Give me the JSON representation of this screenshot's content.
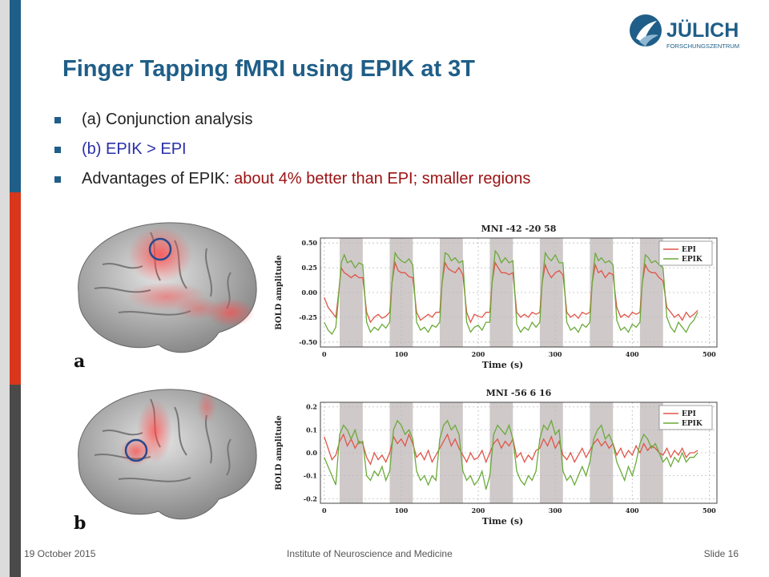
{
  "slide": {
    "title": "Finger Tapping fMRI using EPIK at 3T",
    "logo": {
      "name": "JÜLICH",
      "subtitle": "FORSCHUNGSZENTRUM"
    },
    "bullets": [
      {
        "parts": [
          "(a) Conjunction analysis"
        ]
      },
      {
        "parts": [
          "(b) EPIK > EPI"
        ]
      },
      {
        "parts": [
          "Advantages of EPIK: ",
          "about 4% better than EPI; smaller regions"
        ]
      }
    ],
    "panels": {
      "a": "a",
      "b": "b"
    },
    "footer": {
      "date": "19 October 2015",
      "institute": "Institute of Neuroscience and Medicine",
      "slide_no": "Slide 16"
    },
    "colors": {
      "title": "#1f5e88",
      "red_text": "#9b1111",
      "blue_text": "#2a2fa8",
      "epi": "#e05548",
      "epik": "#6aab3a"
    }
  },
  "chart_data": [
    {
      "type": "line",
      "title": "MNI -42 -20 58",
      "xlabel": "Time (s)",
      "ylabel": "BOLD amplitude",
      "xlim": [
        -5,
        510
      ],
      "ylim": [
        -0.55,
        0.55
      ],
      "xticks": [
        0,
        100,
        200,
        300,
        400,
        500
      ],
      "yticks": [
        0.5,
        0.25,
        0.0,
        -0.25,
        -0.5
      ],
      "ytick_labels": [
        "0.50",
        "0.25",
        "0.00",
        "-0.25",
        "-0.50"
      ],
      "shaded_blocks": [
        [
          20,
          50
        ],
        [
          85,
          115
        ],
        [
          150,
          180
        ],
        [
          215,
          245
        ],
        [
          280,
          310
        ],
        [
          345,
          375
        ],
        [
          410,
          440
        ]
      ],
      "legend": "top-right",
      "series": [
        {
          "name": "EPI",
          "color": "#e05548",
          "x": [
            0,
            5,
            10,
            15,
            18,
            22,
            26,
            30,
            35,
            40,
            45,
            50,
            55,
            60,
            65,
            70,
            75,
            80,
            85,
            88,
            92,
            96,
            100,
            105,
            110,
            115,
            120,
            125,
            130,
            135,
            140,
            145,
            150,
            153,
            157,
            161,
            165,
            170,
            175,
            180,
            185,
            190,
            195,
            200,
            205,
            210,
            215,
            218,
            222,
            226,
            230,
            235,
            240,
            245,
            250,
            255,
            260,
            265,
            270,
            275,
            280,
            283,
            287,
            291,
            295,
            300,
            305,
            310,
            315,
            320,
            325,
            330,
            335,
            340,
            345,
            348,
            352,
            356,
            360,
            365,
            370,
            375,
            380,
            385,
            390,
            395,
            400,
            405,
            410,
            413,
            417,
            421,
            425,
            430,
            435,
            440,
            445,
            450,
            455,
            460,
            465,
            470,
            475,
            480,
            485
          ],
          "y": [
            -0.05,
            -0.15,
            -0.2,
            -0.25,
            -0.05,
            0.25,
            0.2,
            0.18,
            0.15,
            0.18,
            0.15,
            0.15,
            -0.2,
            -0.3,
            -0.25,
            -0.22,
            -0.26,
            -0.24,
            -0.2,
            0.1,
            0.3,
            0.22,
            0.2,
            0.2,
            0.16,
            0.15,
            -0.2,
            -0.28,
            -0.25,
            -0.22,
            -0.25,
            -0.2,
            -0.2,
            0.1,
            0.3,
            0.24,
            0.22,
            0.2,
            0.25,
            0.18,
            -0.2,
            -0.3,
            -0.22,
            -0.24,
            -0.25,
            -0.2,
            -0.2,
            0.1,
            0.3,
            0.25,
            0.2,
            0.2,
            0.18,
            0.2,
            -0.2,
            -0.25,
            -0.22,
            -0.25,
            -0.2,
            -0.22,
            -0.2,
            0.1,
            0.28,
            0.2,
            0.15,
            0.2,
            0.22,
            0.18,
            -0.2,
            -0.25,
            -0.22,
            -0.26,
            -0.2,
            -0.22,
            -0.2,
            0.1,
            0.28,
            0.2,
            0.22,
            0.15,
            0.2,
            0.18,
            -0.15,
            -0.25,
            -0.22,
            -0.25,
            -0.2,
            -0.22,
            -0.2,
            0.1,
            0.28,
            0.22,
            0.2,
            0.2,
            0.15,
            0.12,
            -0.15,
            -0.2,
            -0.25,
            -0.22,
            -0.28,
            -0.2,
            -0.25,
            -0.22,
            -0.18
          ]
        },
        {
          "name": "EPIK",
          "color": "#6aab3a",
          "x": [
            0,
            5,
            10,
            15,
            18,
            22,
            26,
            30,
            35,
            40,
            45,
            50,
            55,
            60,
            65,
            70,
            75,
            80,
            85,
            88,
            92,
            96,
            100,
            105,
            110,
            115,
            120,
            125,
            130,
            135,
            140,
            145,
            150,
            153,
            157,
            161,
            165,
            170,
            175,
            180,
            185,
            190,
            195,
            200,
            205,
            210,
            215,
            218,
            222,
            226,
            230,
            235,
            240,
            245,
            250,
            255,
            260,
            265,
            270,
            275,
            280,
            283,
            287,
            291,
            295,
            300,
            305,
            310,
            315,
            320,
            325,
            330,
            335,
            340,
            345,
            348,
            352,
            356,
            360,
            365,
            370,
            375,
            380,
            385,
            390,
            395,
            400,
            405,
            410,
            413,
            417,
            421,
            425,
            430,
            435,
            440,
            445,
            450,
            455,
            460,
            465,
            470,
            475,
            480,
            485
          ],
          "y": [
            -0.3,
            -0.38,
            -0.42,
            -0.35,
            -0.1,
            0.3,
            0.38,
            0.3,
            0.32,
            0.25,
            0.3,
            0.28,
            -0.3,
            -0.4,
            -0.35,
            -0.38,
            -0.32,
            -0.36,
            -0.3,
            0.1,
            0.4,
            0.35,
            0.32,
            0.3,
            0.34,
            0.28,
            -0.3,
            -0.38,
            -0.35,
            -0.4,
            -0.33,
            -0.35,
            -0.3,
            0.1,
            0.4,
            0.38,
            0.32,
            0.35,
            0.3,
            0.32,
            -0.3,
            -0.4,
            -0.35,
            -0.33,
            -0.38,
            -0.3,
            -0.3,
            0.1,
            0.42,
            0.38,
            0.3,
            0.35,
            0.3,
            0.32,
            -0.32,
            -0.4,
            -0.35,
            -0.38,
            -0.3,
            -0.35,
            -0.3,
            0.1,
            0.4,
            0.35,
            0.32,
            0.38,
            0.3,
            0.3,
            -0.3,
            -0.38,
            -0.35,
            -0.4,
            -0.32,
            -0.35,
            -0.3,
            0.1,
            0.4,
            0.32,
            0.35,
            0.3,
            0.32,
            0.28,
            -0.28,
            -0.38,
            -0.35,
            -0.4,
            -0.32,
            -0.35,
            -0.3,
            0.1,
            0.38,
            0.35,
            0.3,
            0.32,
            0.28,
            0.25,
            -0.25,
            -0.35,
            -0.4,
            -0.3,
            -0.35,
            -0.4,
            -0.32,
            -0.28,
            -0.2
          ]
        }
      ]
    },
    {
      "type": "line",
      "title": "MNI -56 6 16",
      "xlabel": "Time (s)",
      "ylabel": "BOLD amplitude",
      "xlim": [
        -5,
        510
      ],
      "ylim": [
        -0.22,
        0.22
      ],
      "xticks": [
        0,
        100,
        200,
        300,
        400,
        500
      ],
      "yticks": [
        0.2,
        0.1,
        0.0,
        -0.1,
        -0.2
      ],
      "ytick_labels": [
        "0.2",
        "0.1",
        "0.0",
        "-0.1",
        "-0.2"
      ],
      "shaded_blocks": [
        [
          20,
          50
        ],
        [
          85,
          115
        ],
        [
          150,
          180
        ],
        [
          215,
          245
        ],
        [
          280,
          310
        ],
        [
          345,
          375
        ],
        [
          410,
          440
        ]
      ],
      "legend": "top-right",
      "series": [
        {
          "name": "EPI",
          "color": "#e05548",
          "x": [
            0,
            5,
            10,
            15,
            20,
            25,
            30,
            35,
            40,
            45,
            50,
            55,
            60,
            65,
            70,
            75,
            80,
            85,
            90,
            95,
            100,
            105,
            110,
            115,
            120,
            125,
            130,
            135,
            140,
            145,
            150,
            155,
            160,
            165,
            170,
            175,
            180,
            185,
            190,
            195,
            200,
            205,
            210,
            215,
            220,
            225,
            230,
            235,
            240,
            245,
            250,
            255,
            260,
            265,
            270,
            275,
            280,
            285,
            290,
            295,
            300,
            305,
            310,
            315,
            320,
            325,
            330,
            335,
            340,
            345,
            350,
            355,
            360,
            365,
            370,
            375,
            380,
            385,
            390,
            395,
            400,
            405,
            410,
            415,
            420,
            425,
            430,
            435,
            440,
            445,
            450,
            455,
            460,
            465,
            470,
            475,
            480,
            485
          ],
          "y": [
            0.07,
            0.02,
            -0.03,
            -0.01,
            0.05,
            0.08,
            0.03,
            0.06,
            0.02,
            0.05,
            0.04,
            -0.02,
            -0.05,
            0.0,
            -0.03,
            -0.01,
            -0.04,
            0.0,
            0.07,
            0.04,
            0.06,
            0.03,
            0.08,
            0.04,
            -0.02,
            0.0,
            -0.03,
            0.01,
            -0.04,
            -0.01,
            0.02,
            0.05,
            0.08,
            0.03,
            0.06,
            0.02,
            -0.01,
            -0.04,
            0.0,
            -0.03,
            -0.02,
            0.01,
            -0.04,
            0.0,
            0.04,
            0.06,
            0.02,
            0.05,
            0.03,
            0.06,
            -0.02,
            0.0,
            -0.04,
            -0.01,
            -0.03,
            0.01,
            0.02,
            0.06,
            0.03,
            0.07,
            0.02,
            0.05,
            -0.01,
            -0.03,
            0.0,
            -0.04,
            -0.01,
            0.02,
            -0.02,
            0.01,
            0.04,
            0.06,
            0.03,
            0.05,
            0.02,
            0.04,
            -0.01,
            0.02,
            -0.02,
            0.01,
            -0.01,
            0.03,
            0.0,
            0.04,
            0.01,
            0.03,
            0.02,
            0.0,
            -0.01,
            0.02,
            -0.02,
            0.01,
            -0.01,
            0.02,
            -0.02,
            0.0,
            0.0,
            0.01
          ]
        },
        {
          "name": "EPIK",
          "color": "#6aab3a",
          "x": [
            0,
            5,
            10,
            15,
            20,
            25,
            30,
            35,
            40,
            45,
            50,
            55,
            60,
            65,
            70,
            75,
            80,
            85,
            90,
            95,
            100,
            105,
            110,
            115,
            120,
            125,
            130,
            135,
            140,
            145,
            150,
            155,
            160,
            165,
            170,
            175,
            180,
            185,
            190,
            195,
            200,
            205,
            210,
            215,
            220,
            225,
            230,
            235,
            240,
            245,
            250,
            255,
            260,
            265,
            270,
            275,
            280,
            285,
            290,
            295,
            300,
            305,
            310,
            315,
            320,
            325,
            330,
            335,
            340,
            345,
            350,
            355,
            360,
            365,
            370,
            375,
            380,
            385,
            390,
            395,
            400,
            405,
            410,
            415,
            420,
            425,
            430,
            435,
            440,
            445,
            450,
            455,
            460,
            465,
            470,
            475,
            480,
            485
          ],
          "y": [
            -0.02,
            -0.06,
            -0.1,
            -0.14,
            0.08,
            0.12,
            0.1,
            0.06,
            0.1,
            0.04,
            0.05,
            -0.1,
            -0.12,
            -0.08,
            -0.1,
            -0.06,
            -0.12,
            -0.08,
            0.1,
            0.14,
            0.12,
            0.08,
            0.1,
            0.06,
            -0.08,
            -0.12,
            -0.1,
            -0.14,
            -0.1,
            -0.12,
            0.06,
            0.12,
            0.14,
            0.1,
            0.12,
            0.08,
            -0.08,
            -0.12,
            -0.1,
            -0.14,
            -0.12,
            -0.08,
            -0.16,
            -0.1,
            0.08,
            0.12,
            0.1,
            0.08,
            0.12,
            0.06,
            -0.08,
            -0.12,
            -0.14,
            -0.1,
            -0.12,
            -0.08,
            0.06,
            0.12,
            0.1,
            0.14,
            0.08,
            0.1,
            -0.08,
            -0.12,
            -0.1,
            -0.14,
            -0.1,
            -0.06,
            -0.1,
            -0.04,
            0.06,
            0.1,
            0.12,
            0.06,
            0.08,
            0.04,
            -0.04,
            -0.08,
            -0.12,
            -0.06,
            -0.1,
            -0.04,
            0.04,
            0.08,
            0.06,
            0.02,
            0.04,
            0.0,
            -0.04,
            -0.02,
            -0.06,
            -0.02,
            -0.04,
            0.0,
            -0.04,
            -0.02,
            -0.02,
            0.0
          ]
        }
      ]
    }
  ]
}
